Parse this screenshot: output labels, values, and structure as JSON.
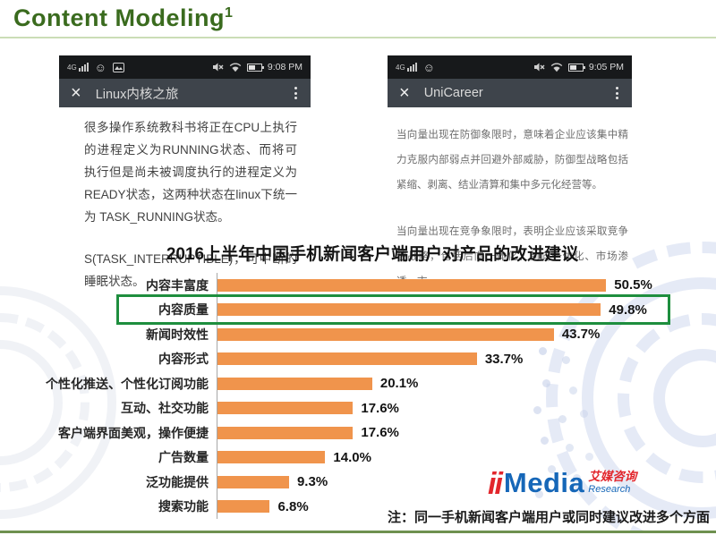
{
  "header": {
    "title": "Content Modeling",
    "superscript": "1"
  },
  "phones": {
    "left": {
      "status": {
        "network": "4G",
        "time": "9:08 PM"
      },
      "nav": {
        "close_glyph": "×",
        "title": "Linux内核之旅"
      },
      "icons": {
        "emoji_glyph": "☺"
      },
      "body": [
        "很多操作系统教科书将正在CPU上执行的进程定义为RUNNING状态、而将可执行但是尚未被调度执行的进程定义为READY状态，这两种状态在linux下统一为 TASK_RUNNING状态。",
        "S(TASK_INTERRUPTIBLE)，可中断的睡眠状态。"
      ]
    },
    "right": {
      "status": {
        "network": "4G",
        "time": "9:05 PM"
      },
      "nav": {
        "close_glyph": "×",
        "title": "UniCareer"
      },
      "icons": {
        "emoji_glyph": "☺"
      },
      "body": [
        "当向量出现在防御象限时，意味着企业应该集中精力克服内部弱点并回避外部威胁，防御型战略包括紧缩、剥离、结业清算和集中多元化经营等。",
        "当向量出现在竞争象限时，表明企业应该采取竞争性战略，包括后向一体化、前向一体化、市场渗透、市"
      ]
    }
  },
  "chart_data": {
    "type": "bar",
    "orientation": "horizontal",
    "title": "2016上半年中国手机新闻客户端用户对产品的改进建议",
    "categories": [
      "内容丰富度",
      "内容质量",
      "新闻时效性",
      "内容形式",
      "个性化推送、个性化订阅功能",
      "互动、社交功能",
      "客户端界面美观，操作便捷",
      "广告数量",
      "泛功能提供",
      "搜索功能"
    ],
    "values": [
      50.5,
      49.8,
      43.7,
      33.7,
      20.1,
      17.6,
      17.6,
      14.0,
      9.3,
      6.8
    ],
    "value_labels": [
      "50.5%",
      "49.8%",
      "43.7%",
      "33.7%",
      "20.1%",
      "17.6%",
      "17.6%",
      "14.0%",
      "9.3%",
      "6.8%"
    ],
    "highlighted_index": 1,
    "highlighted_category": "内容质量",
    "bar_color": "#F0944C",
    "highlight_box_color": "#1E8E3E",
    "xlim": [
      0,
      55
    ],
    "grid": false,
    "legend": false
  },
  "logo": {
    "ii": "ii",
    "media": "Media",
    "cn": "艾媒咨询",
    "research": "Research"
  },
  "footnote": "注：同一手机新闻客户端用户或同时建议改进多个方面",
  "colors": {
    "title-green": "#3A6B1E",
    "rule-light": "#CBDDB6",
    "rule-dark": "#6E9150",
    "bar-orange": "#F0944C",
    "hl-green": "#1E8E3E",
    "logo-red": "#E2262C",
    "logo-blue": "#1667B8"
  }
}
